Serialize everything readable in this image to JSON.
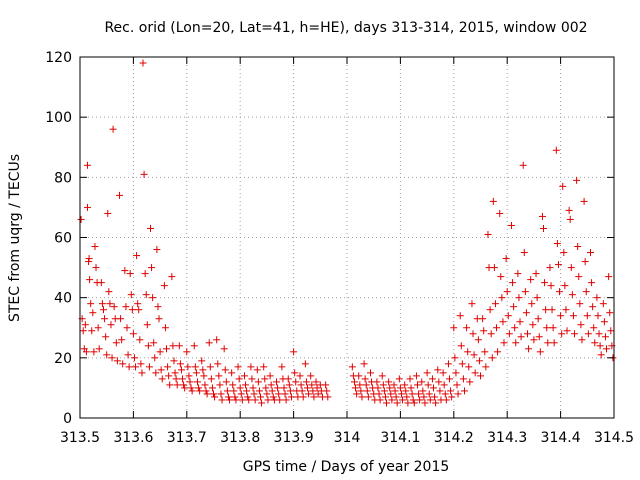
{
  "chart_data": {
    "type": "scatter",
    "title": "Rec. orid (Lon=20, Lat=41, h=HE), days 313-314, 2015, window 002",
    "xlabel": "GPS time / Days of year 2015",
    "ylabel": "STEC from uqrg / TECUs",
    "xlim": [
      313.5,
      314.5
    ],
    "ylim": [
      0,
      120
    ],
    "xticks": [
      "313.5",
      "313.6",
      "313.7",
      "313.8",
      "313.9",
      "314",
      "314.1",
      "314.2",
      "314.3",
      "314.4",
      "314.5"
    ],
    "yticks": [
      "0",
      "20",
      "40",
      "60",
      "80",
      "100",
      "120"
    ],
    "grid": true,
    "marker": "+",
    "color": "#e00000",
    "points": [
      [
        313.502,
        66
      ],
      [
        313.504,
        33
      ],
      [
        313.506,
        29
      ],
      [
        313.508,
        23
      ],
      [
        313.51,
        31
      ],
      [
        313.512,
        22
      ],
      [
        313.514,
        84
      ],
      [
        313.514,
        70
      ],
      [
        313.516,
        52
      ],
      [
        313.517,
        53
      ],
      [
        313.518,
        46
      ],
      [
        313.52,
        38
      ],
      [
        313.522,
        29
      ],
      [
        313.524,
        35
      ],
      [
        313.526,
        22
      ],
      [
        313.528,
        57
      ],
      [
        313.53,
        50
      ],
      [
        313.532,
        45
      ],
      [
        313.534,
        30
      ],
      [
        313.536,
        23
      ],
      [
        313.54,
        45
      ],
      [
        313.542,
        38
      ],
      [
        313.544,
        36
      ],
      [
        313.546,
        33
      ],
      [
        313.548,
        27
      ],
      [
        313.55,
        21
      ],
      [
        313.552,
        68
      ],
      [
        313.554,
        42
      ],
      [
        313.556,
        38
      ],
      [
        313.558,
        31
      ],
      [
        313.56,
        20
      ],
      [
        313.562,
        96
      ],
      [
        313.564,
        37
      ],
      [
        313.566,
        33
      ],
      [
        313.568,
        25
      ],
      [
        313.57,
        19
      ],
      [
        313.574,
        74
      ],
      [
        313.576,
        33
      ],
      [
        313.578,
        26
      ],
      [
        313.58,
        18
      ],
      [
        313.584,
        49
      ],
      [
        313.586,
        37
      ],
      [
        313.588,
        30
      ],
      [
        313.59,
        21
      ],
      [
        313.592,
        17
      ],
      [
        313.594,
        48
      ],
      [
        313.596,
        41
      ],
      [
        313.598,
        36
      ],
      [
        313.6,
        28
      ],
      [
        313.602,
        20
      ],
      [
        313.604,
        17
      ],
      [
        313.606,
        54
      ],
      [
        313.608,
        38
      ],
      [
        313.61,
        36
      ],
      [
        313.612,
        26
      ],
      [
        313.614,
        18
      ],
      [
        313.616,
        15
      ],
      [
        313.618,
        118
      ],
      [
        313.62,
        81
      ],
      [
        313.622,
        48
      ],
      [
        313.624,
        41
      ],
      [
        313.626,
        31
      ],
      [
        313.628,
        24
      ],
      [
        313.63,
        17
      ],
      [
        313.632,
        63
      ],
      [
        313.634,
        50
      ],
      [
        313.636,
        40
      ],
      [
        313.638,
        25
      ],
      [
        313.64,
        20
      ],
      [
        313.642,
        15
      ],
      [
        313.644,
        56
      ],
      [
        313.646,
        37
      ],
      [
        313.648,
        33
      ],
      [
        313.65,
        22
      ],
      [
        313.652,
        16
      ],
      [
        313.654,
        13
      ],
      [
        313.658,
        44
      ],
      [
        313.66,
        30
      ],
      [
        313.662,
        23
      ],
      [
        313.664,
        17
      ],
      [
        313.666,
        14
      ],
      [
        313.668,
        11
      ],
      [
        313.672,
        47
      ],
      [
        313.674,
        24
      ],
      [
        313.676,
        19
      ],
      [
        313.678,
        15
      ],
      [
        313.68,
        13
      ],
      [
        313.682,
        11
      ],
      [
        313.686,
        24
      ],
      [
        313.688,
        18
      ],
      [
        313.69,
        16
      ],
      [
        313.692,
        13
      ],
      [
        313.694,
        11
      ],
      [
        313.696,
        10
      ],
      [
        313.7,
        22
      ],
      [
        313.702,
        17
      ],
      [
        313.704,
        14
      ],
      [
        313.706,
        12
      ],
      [
        313.708,
        10
      ],
      [
        313.71,
        9
      ],
      [
        313.714,
        24
      ],
      [
        313.716,
        17
      ],
      [
        313.718,
        15
      ],
      [
        313.72,
        12
      ],
      [
        313.722,
        10
      ],
      [
        313.724,
        9
      ],
      [
        313.728,
        19
      ],
      [
        313.73,
        16
      ],
      [
        313.732,
        14
      ],
      [
        313.734,
        11
      ],
      [
        313.736,
        9
      ],
      [
        313.738,
        8
      ],
      [
        313.742,
        25
      ],
      [
        313.744,
        17
      ],
      [
        313.746,
        13
      ],
      [
        313.748,
        10
      ],
      [
        313.75,
        8
      ],
      [
        313.752,
        7
      ],
      [
        313.756,
        26
      ],
      [
        313.758,
        18
      ],
      [
        313.76,
        14
      ],
      [
        313.762,
        11
      ],
      [
        313.764,
        8
      ],
      [
        313.766,
        6
      ],
      [
        313.77,
        23
      ],
      [
        313.772,
        16
      ],
      [
        313.774,
        12
      ],
      [
        313.776,
        9
      ],
      [
        313.778,
        7
      ],
      [
        313.78,
        6
      ],
      [
        313.784,
        15
      ],
      [
        313.786,
        11
      ],
      [
        313.788,
        9
      ],
      [
        313.79,
        7
      ],
      [
        313.792,
        6
      ],
      [
        313.796,
        17
      ],
      [
        313.798,
        13
      ],
      [
        313.8,
        10
      ],
      [
        313.802,
        8
      ],
      [
        313.804,
        6
      ],
      [
        313.808,
        14
      ],
      [
        313.81,
        11
      ],
      [
        313.812,
        9
      ],
      [
        313.814,
        7
      ],
      [
        313.816,
        6
      ],
      [
        313.82,
        17
      ],
      [
        313.822,
        13
      ],
      [
        313.824,
        10
      ],
      [
        313.826,
        8
      ],
      [
        313.828,
        6
      ],
      [
        313.832,
        16
      ],
      [
        313.834,
        12
      ],
      [
        313.836,
        9
      ],
      [
        313.838,
        7
      ],
      [
        313.84,
        5
      ],
      [
        313.844,
        17
      ],
      [
        313.846,
        13
      ],
      [
        313.848,
        10
      ],
      [
        313.85,
        8
      ],
      [
        313.852,
        6
      ],
      [
        313.856,
        14
      ],
      [
        313.858,
        11
      ],
      [
        313.86,
        9
      ],
      [
        313.862,
        7
      ],
      [
        313.864,
        6
      ],
      [
        313.868,
        12
      ],
      [
        313.87,
        10
      ],
      [
        313.872,
        8
      ],
      [
        313.874,
        6
      ],
      [
        313.878,
        17
      ],
      [
        313.88,
        13
      ],
      [
        313.882,
        10
      ],
      [
        313.884,
        8
      ],
      [
        313.886,
        6
      ],
      [
        313.89,
        13
      ],
      [
        313.892,
        11
      ],
      [
        313.894,
        9
      ],
      [
        313.896,
        7
      ],
      [
        313.9,
        22
      ],
      [
        313.902,
        15
      ],
      [
        313.904,
        12
      ],
      [
        313.906,
        9
      ],
      [
        313.908,
        7
      ],
      [
        313.912,
        14
      ],
      [
        313.914,
        11
      ],
      [
        313.916,
        9
      ],
      [
        313.918,
        7
      ],
      [
        313.922,
        18
      ],
      [
        313.924,
        12
      ],
      [
        313.926,
        10
      ],
      [
        313.928,
        8
      ],
      [
        313.932,
        14
      ],
      [
        313.934,
        11
      ],
      [
        313.936,
        9
      ],
      [
        313.938,
        7
      ],
      [
        313.942,
        12
      ],
      [
        313.944,
        10
      ],
      [
        313.946,
        8
      ],
      [
        313.95,
        11
      ],
      [
        313.952,
        9
      ],
      [
        313.954,
        7
      ],
      [
        313.96,
        11
      ],
      [
        313.962,
        9
      ],
      [
        313.964,
        7
      ],
      [
        314.01,
        17
      ],
      [
        314.012,
        14
      ],
      [
        314.014,
        12
      ],
      [
        314.016,
        10
      ],
      [
        314.018,
        8
      ],
      [
        314.022,
        14
      ],
      [
        314.024,
        11
      ],
      [
        314.026,
        9
      ],
      [
        314.028,
        7
      ],
      [
        314.032,
        18
      ],
      [
        314.034,
        13
      ],
      [
        314.036,
        11
      ],
      [
        314.038,
        9
      ],
      [
        314.04,
        7
      ],
      [
        314.044,
        15
      ],
      [
        314.046,
        12
      ],
      [
        314.048,
        10
      ],
      [
        314.05,
        8
      ],
      [
        314.052,
        6
      ],
      [
        314.056,
        12
      ],
      [
        314.058,
        10
      ],
      [
        314.06,
        8
      ],
      [
        314.062,
        6
      ],
      [
        314.066,
        14
      ],
      [
        314.068,
        11
      ],
      [
        314.07,
        9
      ],
      [
        314.072,
        7
      ],
      [
        314.074,
        5
      ],
      [
        314.078,
        12
      ],
      [
        314.08,
        10
      ],
      [
        314.082,
        8
      ],
      [
        314.084,
        6
      ],
      [
        314.088,
        11
      ],
      [
        314.09,
        9
      ],
      [
        314.092,
        7
      ],
      [
        314.094,
        5
      ],
      [
        314.098,
        13
      ],
      [
        314.1,
        10
      ],
      [
        314.102,
        8
      ],
      [
        314.104,
        6
      ],
      [
        314.108,
        11
      ],
      [
        314.11,
        9
      ],
      [
        314.112,
        7
      ],
      [
        314.114,
        5
      ],
      [
        314.118,
        13
      ],
      [
        314.12,
        10
      ],
      [
        314.122,
        8
      ],
      [
        314.124,
        6
      ],
      [
        314.126,
        5
      ],
      [
        314.13,
        14
      ],
      [
        314.132,
        11
      ],
      [
        314.134,
        8
      ],
      [
        314.136,
        6
      ],
      [
        314.14,
        12
      ],
      [
        314.142,
        9
      ],
      [
        314.144,
        7
      ],
      [
        314.146,
        5
      ],
      [
        314.15,
        15
      ],
      [
        314.152,
        11
      ],
      [
        314.154,
        8
      ],
      [
        314.156,
        6
      ],
      [
        314.16,
        13
      ],
      [
        314.162,
        10
      ],
      [
        314.164,
        7
      ],
      [
        314.166,
        5
      ],
      [
        314.17,
        16
      ],
      [
        314.172,
        12
      ],
      [
        314.174,
        9
      ],
      [
        314.176,
        6
      ],
      [
        314.18,
        15
      ],
      [
        314.182,
        11
      ],
      [
        314.184,
        8
      ],
      [
        314.186,
        6
      ],
      [
        314.19,
        18
      ],
      [
        314.192,
        13
      ],
      [
        314.194,
        9
      ],
      [
        314.196,
        7
      ],
      [
        314.2,
        30
      ],
      [
        314.202,
        20
      ],
      [
        314.204,
        15
      ],
      [
        314.206,
        11
      ],
      [
        314.208,
        8
      ],
      [
        314.212,
        34
      ],
      [
        314.214,
        24
      ],
      [
        314.216,
        18
      ],
      [
        314.218,
        13
      ],
      [
        314.22,
        9
      ],
      [
        314.224,
        30
      ],
      [
        314.226,
        22
      ],
      [
        314.228,
        17
      ],
      [
        314.23,
        12
      ],
      [
        314.234,
        38
      ],
      [
        314.236,
        28
      ],
      [
        314.238,
        21
      ],
      [
        314.24,
        15
      ],
      [
        314.244,
        33
      ],
      [
        314.246,
        26
      ],
      [
        314.248,
        19
      ],
      [
        314.25,
        14
      ],
      [
        314.254,
        33
      ],
      [
        314.256,
        29
      ],
      [
        314.258,
        22
      ],
      [
        314.26,
        17
      ],
      [
        314.264,
        61
      ],
      [
        314.266,
        50
      ],
      [
        314.268,
        36
      ],
      [
        314.27,
        28
      ],
      [
        314.272,
        20
      ],
      [
        314.274,
        72
      ],
      [
        314.276,
        50
      ],
      [
        314.278,
        38
      ],
      [
        314.28,
        30
      ],
      [
        314.282,
        22
      ],
      [
        314.286,
        68
      ],
      [
        314.288,
        47
      ],
      [
        314.29,
        40
      ],
      [
        314.292,
        32
      ],
      [
        314.294,
        25
      ],
      [
        314.298,
        53
      ],
      [
        314.3,
        42
      ],
      [
        314.302,
        34
      ],
      [
        314.304,
        28
      ],
      [
        314.308,
        64
      ],
      [
        314.31,
        45
      ],
      [
        314.312,
        37
      ],
      [
        314.314,
        30
      ],
      [
        314.316,
        25
      ],
      [
        314.32,
        48
      ],
      [
        314.322,
        40
      ],
      [
        314.324,
        32
      ],
      [
        314.326,
        27
      ],
      [
        314.33,
        84
      ],
      [
        314.332,
        55
      ],
      [
        314.334,
        42
      ],
      [
        314.336,
        35
      ],
      [
        314.338,
        28
      ],
      [
        314.34,
        23
      ],
      [
        314.344,
        46
      ],
      [
        314.346,
        38
      ],
      [
        314.348,
        31
      ],
      [
        314.35,
        26
      ],
      [
        314.354,
        48
      ],
      [
        314.356,
        40
      ],
      [
        314.358,
        33
      ],
      [
        314.36,
        27
      ],
      [
        314.362,
        22
      ],
      [
        314.366,
        67
      ],
      [
        314.368,
        63
      ],
      [
        314.37,
        45
      ],
      [
        314.372,
        36
      ],
      [
        314.374,
        30
      ],
      [
        314.376,
        25
      ],
      [
        314.38,
        50
      ],
      [
        314.382,
        44
      ],
      [
        314.384,
        36
      ],
      [
        314.386,
        30
      ],
      [
        314.388,
        25
      ],
      [
        314.392,
        89
      ],
      [
        314.394,
        58
      ],
      [
        314.396,
        51
      ],
      [
        314.398,
        42
      ],
      [
        314.4,
        34
      ],
      [
        314.402,
        28
      ],
      [
        314.404,
        77
      ],
      [
        314.406,
        55
      ],
      [
        314.408,
        44
      ],
      [
        314.41,
        36
      ],
      [
        314.412,
        29
      ],
      [
        314.416,
        69
      ],
      [
        314.418,
        66
      ],
      [
        314.42,
        50
      ],
      [
        314.422,
        41
      ],
      [
        314.424,
        34
      ],
      [
        314.426,
        28
      ],
      [
        314.43,
        79
      ],
      [
        314.432,
        57
      ],
      [
        314.434,
        47
      ],
      [
        314.436,
        38
      ],
      [
        314.438,
        31
      ],
      [
        314.44,
        26
      ],
      [
        314.444,
        72
      ],
      [
        314.446,
        52
      ],
      [
        314.448,
        42
      ],
      [
        314.45,
        34
      ],
      [
        314.452,
        28
      ],
      [
        314.456,
        55
      ],
      [
        314.458,
        45
      ],
      [
        314.46,
        37
      ],
      [
        314.462,
        30
      ],
      [
        314.464,
        25
      ],
      [
        314.468,
        40
      ],
      [
        314.47,
        34
      ],
      [
        314.472,
        28
      ],
      [
        314.474,
        24
      ],
      [
        314.476,
        21
      ],
      [
        314.48,
        38
      ],
      [
        314.482,
        32
      ],
      [
        314.484,
        27
      ],
      [
        314.486,
        23
      ],
      [
        314.49,
        47
      ],
      [
        314.492,
        35
      ],
      [
        314.494,
        29
      ],
      [
        314.496,
        24
      ],
      [
        314.498,
        20
      ]
    ]
  }
}
